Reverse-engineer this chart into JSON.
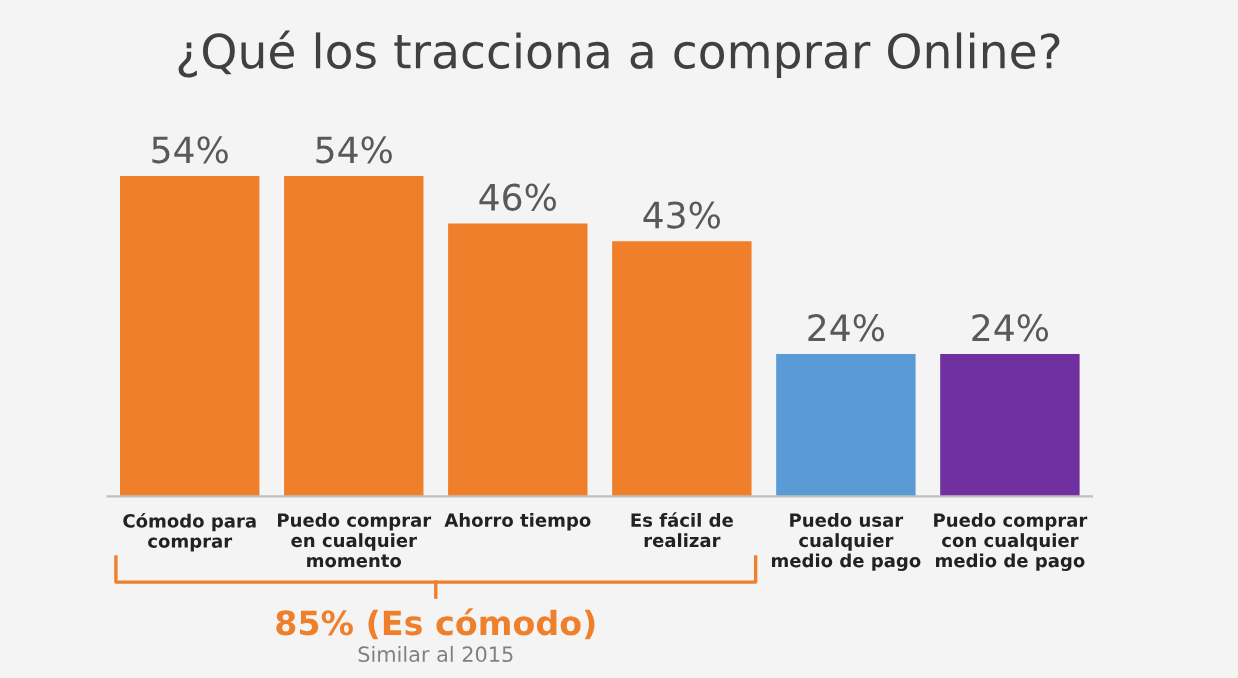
{
  "chart_data": {
    "type": "bar",
    "title": "¿Qué los tracciona a comprar Online?",
    "categories": [
      "Cómodo para\ncomprar",
      "Puedo comprar\nen cualquier\nmomento",
      "Ahorro tiempo",
      "Es fácil de\nrealizar",
      "Puedo usar\ncualquier\nmedio de pago",
      "Puedo comprar\ncon cualquier\nmedio de pago"
    ],
    "values": [
      54,
      54,
      46,
      43,
      24,
      24
    ],
    "value_labels": [
      "54%",
      "54%",
      "46%",
      "43%",
      "24%",
      "24%"
    ],
    "colors": [
      "#f07f2c",
      "#f07f2c",
      "#f07f2c",
      "#f07f2c",
      "#5b9bd5",
      "#7030a0"
    ],
    "annotations": [
      "85% (Es cómodo)",
      "Similar al 2015"
    ],
    "grid": false,
    "legend": false
  }
}
